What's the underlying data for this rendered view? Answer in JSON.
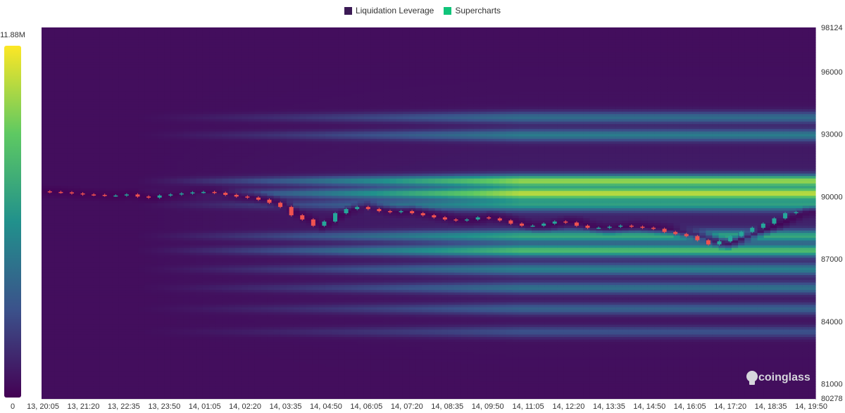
{
  "legend": [
    {
      "name": "Liquidation Leverage",
      "color": "#3b1a55"
    },
    {
      "name": "Supercharts",
      "color": "#10c47a"
    }
  ],
  "watermark": "coinglass",
  "color_scale": {
    "max_label": "11.88M",
    "min_label": "0",
    "max": 11880000,
    "min": 0,
    "colors": [
      "#440154",
      "#3b528b",
      "#21918c",
      "#5ec962",
      "#fde725"
    ]
  },
  "chart_data": {
    "type": "heatmap",
    "y_axis": {
      "min": 80278,
      "max": 98124,
      "ticks": [
        "98124",
        "96000",
        "93000",
        "90000",
        "87000",
        "84000",
        "81000",
        "80278"
      ]
    },
    "x_axis": {
      "ticks": [
        "13, 20:05",
        "13, 21:20",
        "13, 22:35",
        "13, 23:50",
        "14, 01:05",
        "14, 02:20",
        "14, 03:35",
        "14, 04:50",
        "14, 06:05",
        "14, 07:20",
        "14, 08:35",
        "14, 09:50",
        "14, 11:05",
        "14, 12:20",
        "14, 13:35",
        "14, 14:50",
        "14, 16:05",
        "14, 17:20",
        "14, 18:35",
        "14, 19:50"
      ]
    },
    "price_series": [
      90250,
      90220,
      90200,
      90150,
      90100,
      90080,
      90050,
      90050,
      90100,
      90000,
      89950,
      90050,
      90100,
      90150,
      90200,
      90220,
      90180,
      90080,
      90000,
      89950,
      89850,
      89700,
      89500,
      89100,
      88900,
      88600,
      88800,
      89200,
      89400,
      89500,
      89400,
      89300,
      89250,
      89300,
      89200,
      89100,
      89000,
      88900,
      88850,
      88900,
      89000,
      88950,
      88850,
      88700,
      88600,
      88600,
      88700,
      88800,
      88750,
      88600,
      88500,
      88500,
      88550,
      88600,
      88550,
      88500,
      88450,
      88300,
      88200,
      88100,
      87900,
      87700,
      87850,
      88100,
      88300,
      88500,
      88700,
      88950,
      89200,
      89250
    ],
    "liquidation_bands": [
      {
        "price": 90750,
        "strength": 0.75
      },
      {
        "price": 90150,
        "strength": 0.8
      },
      {
        "price": 89600,
        "strength": 0.45
      },
      {
        "price": 92950,
        "strength": 0.35
      },
      {
        "price": 93800,
        "strength": 0.3
      },
      {
        "price": 88100,
        "strength": 0.5
      },
      {
        "price": 87400,
        "strength": 0.6
      },
      {
        "price": 86500,
        "strength": 0.35
      },
      {
        "price": 85600,
        "strength": 0.3
      },
      {
        "price": 84600,
        "strength": 0.25
      },
      {
        "price": 83500,
        "strength": 0.2
      }
    ]
  }
}
